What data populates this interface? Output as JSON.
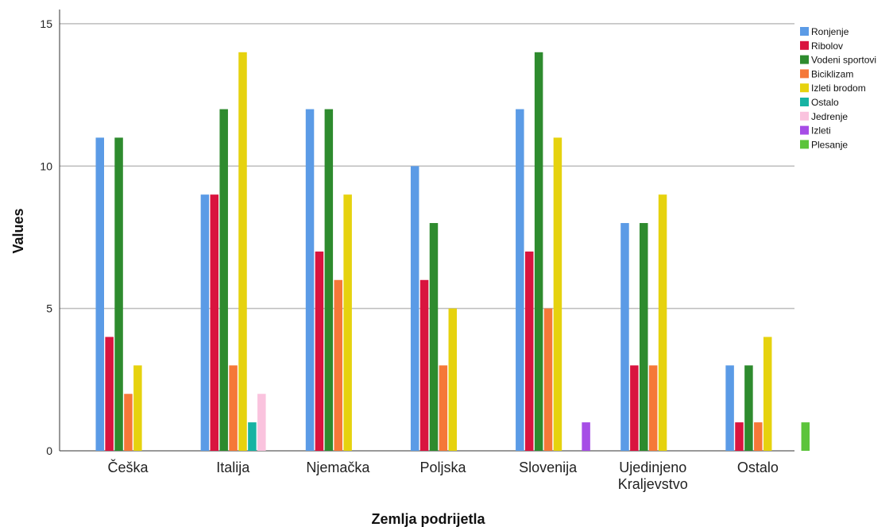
{
  "chart_data": {
    "type": "bar",
    "xlabel": "Zemlja podrijetla",
    "ylabel": "Values",
    "ylim": [
      0,
      15.5
    ],
    "yticks": [
      0,
      5,
      10,
      15
    ],
    "grid": true,
    "legend_position": "top-right",
    "categories": [
      "Češka",
      "Italija",
      "Njemačka",
      "Poljska",
      "Slovenija",
      "Ujedinjeno Kraljevstvo",
      "Ostalo"
    ],
    "category_lines": [
      [
        "Češka"
      ],
      [
        "Italija"
      ],
      [
        "Njemačka"
      ],
      [
        "Poljska"
      ],
      [
        "Slovenija"
      ],
      [
        "Ujedinjeno",
        "Kraljevstvo"
      ],
      [
        "Ostalo"
      ]
    ],
    "series": [
      {
        "name": "Ronjenje",
        "color": "#5B9BE6",
        "values": [
          11,
          9,
          12,
          10,
          12,
          8,
          3
        ]
      },
      {
        "name": "Ribolov",
        "color": "#D9143F",
        "values": [
          4,
          9,
          7,
          6,
          7,
          3,
          1
        ]
      },
      {
        "name": "Vodeni sportovi",
        "color": "#2E8B2E",
        "values": [
          11,
          12,
          12,
          8,
          14,
          8,
          3
        ]
      },
      {
        "name": "Biciklizam",
        "color": "#F57838",
        "values": [
          2,
          3,
          6,
          3,
          5,
          3,
          1
        ]
      },
      {
        "name": "Izleti brodom",
        "color": "#E6D20E",
        "values": [
          3,
          14,
          9,
          5,
          11,
          9,
          4
        ]
      },
      {
        "name": "Ostalo",
        "color": "#17B3A3",
        "values": [
          0,
          1,
          0,
          0,
          0,
          0,
          0
        ]
      },
      {
        "name": "Jedrenje",
        "color": "#FAC3DE",
        "values": [
          0,
          2,
          0,
          0,
          0,
          0,
          0
        ]
      },
      {
        "name": "Izleti",
        "color": "#A64DE6",
        "values": [
          0,
          0,
          0,
          0,
          1,
          0,
          0
        ]
      },
      {
        "name": "Plesanje",
        "color": "#5CC43B",
        "values": [
          0,
          0,
          0,
          0,
          0,
          0,
          1
        ]
      }
    ]
  }
}
